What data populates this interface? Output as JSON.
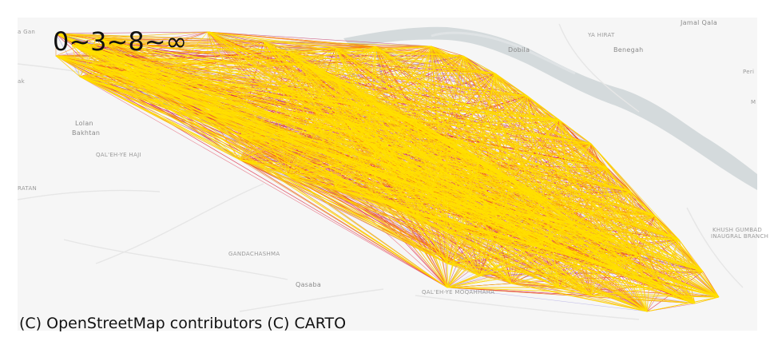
{
  "legend": {
    "breaks_label": "0~3~8~∞"
  },
  "attribution": "(C) OpenStreetMap contributors (C) CARTO",
  "place_labels": {
    "jamal_qala": "Jamal Qala",
    "dobila": "Dobila",
    "benegah": "Benegah",
    "lolan": "Lolan",
    "bakhtan": "Bakhtan",
    "qasaba": "Qasaba",
    "ya_hirat": "YA HIRAT",
    "gandachashma": "GANDACHASHMA",
    "qal_eh_ye_hajji": "QAL'EH-YE HAJI",
    "qal_eh_ye_moqahhaha": "QAL'EH-YE MOQAHHAHA",
    "ratan": "RATAN",
    "khush_gumbad": "KHUSH GUMBAD",
    "inaugral_branch": "INAUGRAL BRANCH",
    "a_gan": "a Gan",
    "ak": "ak",
    "peri": "Peri",
    "m": "M"
  },
  "flow_colors": {
    "class_0_3": "#7b6fd6",
    "class_3_8": "#e0203a",
    "class_8_inf": "#ffe000",
    "medium": "#ff8c00"
  },
  "basemap_colors": {
    "land": "#f6f6f6",
    "water": "#d4dadc",
    "road": "#e6e6e6"
  }
}
